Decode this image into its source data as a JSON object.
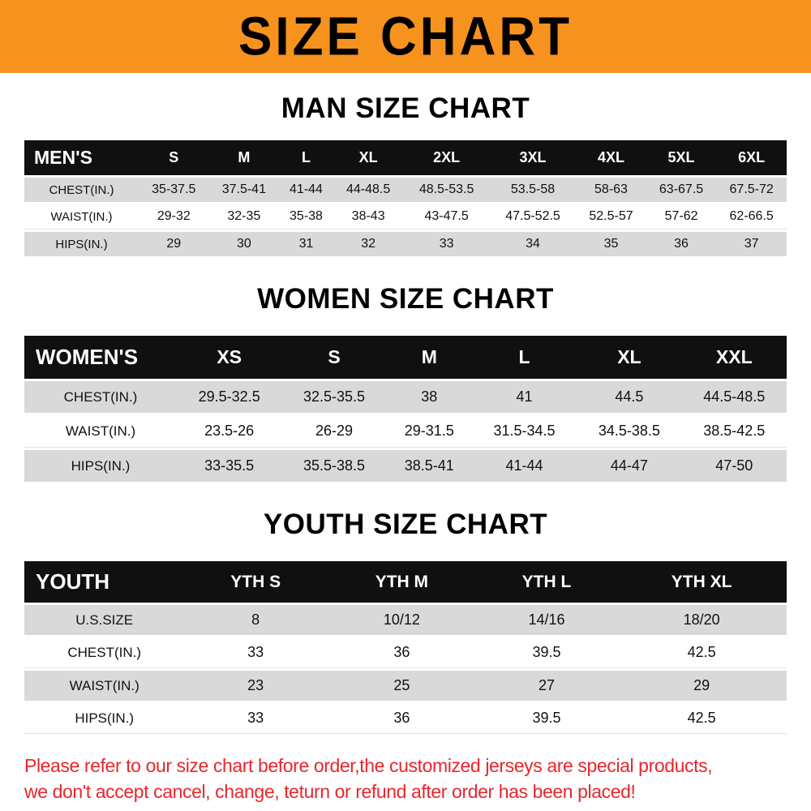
{
  "banner": {
    "title": "SIZE CHART",
    "bg_color": "#F6921E"
  },
  "chart_data": [
    {
      "type": "table",
      "title": "MAN SIZE CHART",
      "header": [
        "MEN'S",
        "S",
        "M",
        "L",
        "XL",
        "2XL",
        "3XL",
        "4XL",
        "5XL",
        "6XL"
      ],
      "rows": [
        [
          "CHEST(IN.)",
          "35-37.5",
          "37.5-41",
          "41-44",
          "44-48.5",
          "48.5-53.5",
          "53.5-58",
          "58-63",
          "63-67.5",
          "67.5-72"
        ],
        [
          "WAIST(IN.)",
          "29-32",
          "32-35",
          "35-38",
          "38-43",
          "43-47.5",
          "47.5-52.5",
          "52.5-57",
          "57-62",
          "62-66.5"
        ],
        [
          "HIPS(IN.)",
          "29",
          "30",
          "31",
          "32",
          "33",
          "34",
          "35",
          "36",
          "37"
        ]
      ]
    },
    {
      "type": "table",
      "title": "WOMEN SIZE CHART",
      "header": [
        "WOMEN'S",
        "XS",
        "S",
        "M",
        "L",
        "XL",
        "XXL"
      ],
      "rows": [
        [
          "CHEST(IN.)",
          "29.5-32.5",
          "32.5-35.5",
          "38",
          "41",
          "44.5",
          "44.5-48.5"
        ],
        [
          "WAIST(IN.)",
          "23.5-26",
          "26-29",
          "29-31.5",
          "31.5-34.5",
          "34.5-38.5",
          "38.5-42.5"
        ],
        [
          "HIPS(IN.)",
          "33-35.5",
          "35.5-38.5",
          "38.5-41",
          "41-44",
          "44-47",
          "47-50"
        ]
      ]
    },
    {
      "type": "table",
      "title": "YOUTH SIZE CHART",
      "header": [
        "YOUTH",
        "YTH S",
        "YTH M",
        "YTH L",
        "YTH XL"
      ],
      "rows": [
        [
          "U.S.SIZE",
          "8",
          "10/12",
          "14/16",
          "18/20"
        ],
        [
          "CHEST(IN.)",
          "33",
          "36",
          "39.5",
          "42.5"
        ],
        [
          "WAIST(IN.)",
          "23",
          "25",
          "27",
          "29"
        ],
        [
          "HIPS(IN.)",
          "33",
          "36",
          "39.5",
          "42.5"
        ]
      ]
    }
  ],
  "footer": {
    "line1": "Please refer to our size chart before order,the customized jerseys are special products,",
    "line2": "we don't accept cancel, change, teturn or refund after order has been placed!",
    "color": "#E8262D"
  }
}
